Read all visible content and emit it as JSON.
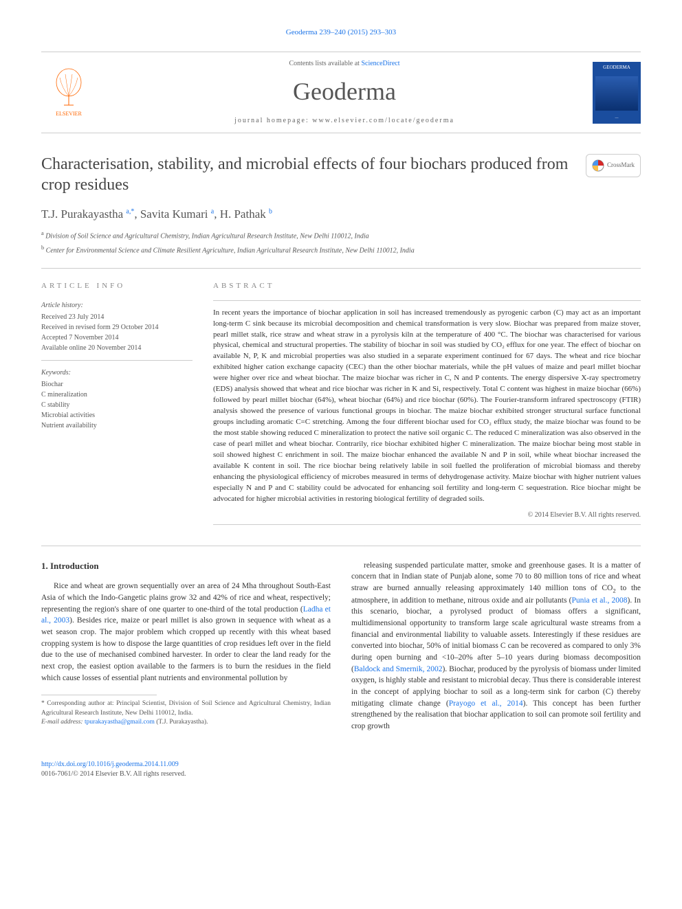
{
  "journal_ref": "Geoderma 239–240 (2015) 293–303",
  "header": {
    "contents_prefix": "Contents lists available at ",
    "contents_link": "ScienceDirect",
    "journal_name": "Geoderma",
    "homepage_prefix": "journal homepage: ",
    "homepage_url": "www.elsevier.com/locate/geoderma",
    "publisher_name": "ELSEVIER",
    "cover_label": "GEODERMA"
  },
  "article": {
    "title": "Characterisation, stability, and microbial effects of four biochars produced from crop residues",
    "crossmark": "CrossMark",
    "authors_html": "T.J. Purakayastha <sup>a,*</sup>, Savita Kumari <sup>a</sup>, H. Pathak <sup>b</sup>",
    "affiliations": [
      {
        "sup": "a",
        "text": "Division of Soil Science and Agricultural Chemistry, Indian Agricultural Research Institute, New Delhi 110012, India"
      },
      {
        "sup": "b",
        "text": "Center for Environmental Science and Climate Resilient Agriculture, Indian Agricultural Research Institute, New Delhi 110012, India"
      }
    ]
  },
  "info": {
    "heading": "ARTICLE INFO",
    "history_label": "Article history:",
    "history": [
      "Received 23 July 2014",
      "Received in revised form 29 October 2014",
      "Accepted 7 November 2014",
      "Available online 20 November 2014"
    ],
    "keywords_label": "Keywords:",
    "keywords": [
      "Biochar",
      "C mineralization",
      "C stability",
      "Microbial activities",
      "Nutrient availability"
    ]
  },
  "abstract": {
    "heading": "ABSTRACT",
    "text": "In recent years the importance of biochar application in soil has increased tremendously as pyrogenic carbon (C) may act as an important long-term C sink because its microbial decomposition and chemical transformation is very slow. Biochar was prepared from maize stover, pearl millet stalk, rice straw and wheat straw in a pyrolysis kiln at the temperature of 400 °C. The biochar was characterised for various physical, chemical and structural properties. The stability of biochar in soil was studied by CO₂ efflux for one year. The effect of biochar on available N, P, K and microbial properties was also studied in a separate experiment continued for 67 days. The wheat and rice biochar exhibited higher cation exchange capacity (CEC) than the other biochar materials, while the pH values of maize and pearl millet biochar were higher over rice and wheat biochar. The maize biochar was richer in C, N and P contents. The energy dispersive X-ray spectrometry (EDS) analysis showed that wheat and rice biochar was richer in K and Si, respectively. Total C content was highest in maize biochar (66%) followed by pearl millet biochar (64%), wheat biochar (64%) and rice biochar (60%). The Fourier-transform infrared spectroscopy (FTIR) analysis showed the presence of various functional groups in biochar. The maize biochar exhibited stronger structural surface functional groups including aromatic C=C stretching. Among the four different biochar used for CO₂ efflux study, the maize biochar was found to be the most stable showing reduced C mineralization to protect the native soil organic C. The reduced C mineralization was also observed in the case of pearl millet and wheat biochar. Contrarily, rice biochar exhibited higher C mineralization. The maize biochar being most stable in soil showed highest C enrichment in soil. The maize biochar enhanced the available N and P in soil, while wheat biochar increased the available K content in soil. The rice biochar being relatively labile in soil fuelled the proliferation of microbial biomass and thereby enhancing the physiological efficiency of microbes measured in terms of dehydrogenase activity. Maize biochar with higher nutrient values especially N and P and C stability could be advocated for enhancing soil fertility and long-term C sequestration. Rice biochar might be advocated for higher microbial activities in restoring biological fertility of degraded soils.",
    "copyright": "© 2014 Elsevier B.V. All rights reserved."
  },
  "body": {
    "heading": "1. Introduction",
    "col1": "Rice and wheat are grown sequentially over an area of 24 Mha throughout South-East Asia of which the Indo-Gangetic plains grow 32 and 42% of rice and wheat, respectively; representing the region's share of one quarter to one-third of the total production (<span class=\"link\">Ladha et al., 2003</span>). Besides rice, maize or pearl millet is also grown in sequence with wheat as a wet season crop. The major problem which cropped up recently with this wheat based cropping system is how to dispose the large quantities of crop residues left over in the field due to the use of mechanised combined harvester. In order to clear the land ready for the next crop, the easiest option available to the farmers is to burn the residues in the field which cause losses of essential plant nutrients and environmental pollution by",
    "col2": "releasing suspended particulate matter, smoke and greenhouse gases. It is a matter of concern that in Indian state of Punjab alone, some 70 to 80 million tons of rice and wheat straw are burned annually releasing approximately 140 million tons of CO<sub>2</sub> to the atmosphere, in addition to methane, nitrous oxide and air pollutants (<span class=\"link\">Punia et al., 2008</span>). In this scenario, biochar, a pyrolysed product of biomass offers a significant, multidimensional opportunity to transform large scale agricultural waste streams from a financial and environmental liability to valuable assets. Interestingly if these residues are converted into biochar, 50% of initial biomass C can be recovered as compared to only 3% during open burning and <10–20% after 5–10 years during biomass decomposition (<span class=\"link\">Baldock and Smernik, 2002</span>). Biochar, produced by the pyrolysis of biomass under limited oxygen, is highly stable and resistant to microbial decay. Thus there is considerable interest in the concept of applying biochar to soil as a long-term sink for carbon (C) thereby mitigating climate change (<span class=\"link\">Prayogo et al., 2014</span>). This concept has been further strengthened by the realisation that biochar application to soil can promote soil fertility and crop growth"
  },
  "footnote": {
    "corr": "* Corresponding author at: Principal Scientist, Division of Soil Science and Agricultural Chemistry, Indian Agricultural Research Institute, New Delhi 110012, India.",
    "email_label": "E-mail address:",
    "email": "tpurakayastha@gmail.com",
    "email_author": "(T.J. Purakayastha)."
  },
  "footer": {
    "doi": "http://dx.doi.org/10.1016/j.geoderma.2014.11.009",
    "issn_line": "0016-7061/© 2014 Elsevier B.V. All rights reserved."
  },
  "colors": {
    "link": "#1a73e8",
    "text": "#333333",
    "muted": "#666666",
    "border": "#cccccc",
    "publisher": "#ff6600",
    "cover_bg": "#1a4d9e"
  }
}
